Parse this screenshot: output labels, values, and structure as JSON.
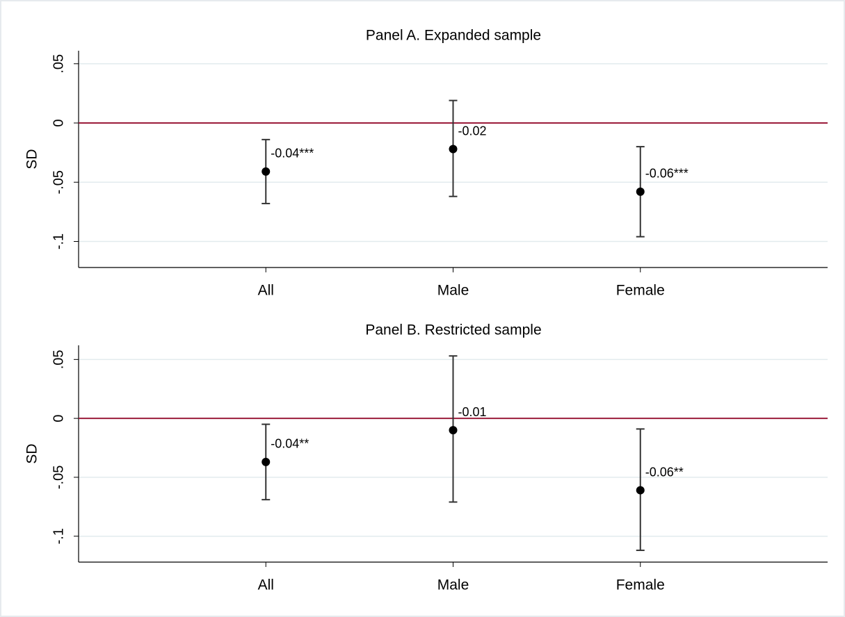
{
  "chart_data": [
    {
      "type": "errorbar",
      "title": "Panel A. Expanded sample",
      "y_label": "SD",
      "categories": [
        "All",
        "Male",
        "Female"
      ],
      "values": [
        -0.041,
        -0.022,
        -0.058
      ],
      "value_labels": [
        "-0.04***",
        "-0.02",
        "-0.06***"
      ],
      "lower": [
        -0.068,
        -0.062,
        -0.096
      ],
      "upper": [
        -0.014,
        0.019,
        -0.02
      ],
      "ylim": [
        -0.122,
        0.061
      ],
      "yticks": [
        {
          "value": 0.05,
          "label": ".05"
        },
        0,
        {
          "value": -0.05,
          "label": "-.05"
        },
        {
          "value": -0.1,
          "label": "-.1"
        }
      ],
      "grid": true,
      "color": "#000000",
      "reference_line": {
        "value": 0,
        "color": "#9b1b3a"
      }
    },
    {
      "type": "errorbar",
      "title": "Panel B. Restricted sample",
      "y_label": "SD",
      "categories": [
        "All",
        "Male",
        "Female"
      ],
      "values": [
        -0.037,
        -0.01,
        -0.061
      ],
      "value_labels": [
        "-0.04**",
        "-0.01",
        "-0.06**"
      ],
      "lower": [
        -0.069,
        -0.071,
        -0.112
      ],
      "upper": [
        -0.005,
        0.053,
        -0.009
      ],
      "ylim": [
        -0.122,
        0.062
      ],
      "yticks": [
        {
          "value": 0.05,
          "label": ".05"
        },
        0,
        {
          "value": -0.05,
          "label": "-.05"
        },
        {
          "value": -0.1,
          "label": "-.1"
        }
      ],
      "grid": true,
      "color": "#000000",
      "reference_line": {
        "value": 0,
        "color": "#9b1b3a"
      }
    }
  ]
}
